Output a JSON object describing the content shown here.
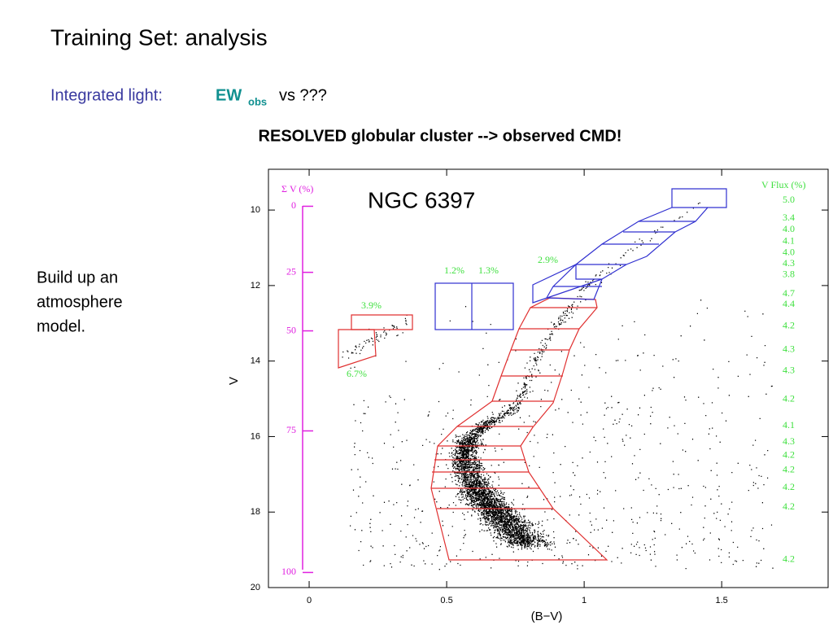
{
  "slide": {
    "title": "Training Set:   analysis",
    "subtitle": {
      "prefix": "Integrated light:",
      "ew": "EW",
      "ew_sub": "obs",
      "rest": "vs  ???"
    },
    "heading": "RESOLVED globular cluster  --> observed CMD!",
    "note": [
      "Build up an",
      "atmosphere",
      "model."
    ]
  },
  "figure": {
    "title": "NGC 6397",
    "x_label": "(B−V)",
    "y_label": "V",
    "xlim": [
      -0.148,
      1.887
    ],
    "ylim": [
      20,
      8.92
    ],
    "xticks": [
      0,
      0.5,
      1,
      1.5
    ],
    "yticks": [
      10,
      12,
      14,
      16,
      18,
      20
    ],
    "sum_title": "Σ V (%)",
    "sum_ticks": [
      {
        "value": 9.9,
        "label": "0"
      },
      {
        "value": 11.65,
        "label": "25"
      },
      {
        "value": 13.2,
        "label": "50"
      },
      {
        "value": 15.85,
        "label": "75"
      },
      {
        "value": 19.6,
        "label": "100"
      }
    ],
    "flux_title": "V Flux (%)",
    "flux_labels": [
      {
        "value": 9.74,
        "label": "5.0"
      },
      {
        "value": 10.22,
        "label": "3.4"
      },
      {
        "value": 10.52,
        "label": "4.0"
      },
      {
        "value": 10.83,
        "label": "4.1"
      },
      {
        "value": 11.13,
        "label": "4.0"
      },
      {
        "value": 11.43,
        "label": "4.3"
      },
      {
        "value": 11.72,
        "label": "3.8"
      },
      {
        "value": 12.22,
        "label": "4.7"
      },
      {
        "value": 12.5,
        "label": "4.4"
      },
      {
        "value": 13.07,
        "label": "4.2"
      },
      {
        "value": 13.7,
        "label": "4.3"
      },
      {
        "value": 14.26,
        "label": "4.3"
      },
      {
        "value": 15.02,
        "label": "4.2"
      },
      {
        "value": 15.72,
        "label": "4.1"
      },
      {
        "value": 16.15,
        "label": "4.3"
      },
      {
        "value": 16.5,
        "label": "4.2"
      },
      {
        "value": 16.89,
        "label": "4.2"
      },
      {
        "value": 17.35,
        "label": "4.2"
      },
      {
        "value": 17.87,
        "label": "4.2"
      },
      {
        "value": 19.26,
        "label": "4.2"
      }
    ],
    "box_labels": [
      "3.9%",
      "6.7%",
      "1.2%",
      "1.3%",
      "2.9%"
    ]
  }
}
